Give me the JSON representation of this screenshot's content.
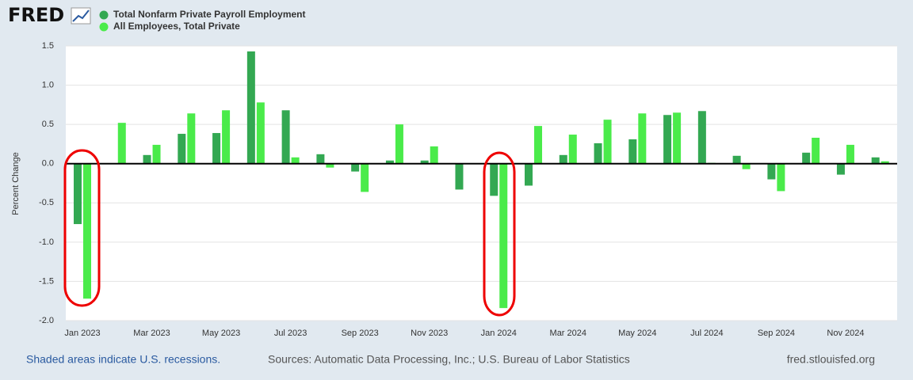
{
  "chart_data": {
    "type": "bar",
    "logo": "FRED",
    "y_label": "Percent Change",
    "note": "Shaded areas indicate U.S. recessions.",
    "sources": "Sources: Automatic Data Processing, Inc.; U.S. Bureau of Labor Statistics",
    "site": "fred.stlouisfed.org",
    "categories": [
      "Jan 2023",
      null,
      "Mar 2023",
      null,
      "May 2023",
      null,
      "Jul 2023",
      null,
      "Sep 2023",
      null,
      "Nov 2023",
      null,
      "Jan 2024",
      null,
      "Mar 2024",
      null,
      "May 2024",
      null,
      "Jul 2024",
      null,
      "Sep 2024",
      null,
      "Nov 2024",
      null
    ],
    "series": [
      {
        "name": "Total Nonfarm Private Payroll Employment",
        "color": "#33a852",
        "values": [
          -0.77,
          0,
          0.11,
          0.38,
          0.39,
          1.43,
          0.68,
          0.12,
          -0.1,
          0.04,
          0.04,
          -0.33,
          -0.41,
          -0.28,
          0.11,
          0.26,
          0.31,
          0.62,
          0.67,
          0.1,
          -0.2,
          0.14,
          -0.14,
          0.08
        ]
      },
      {
        "name": "All Employees, Total Private",
        "color": "#4aeb4a",
        "values": [
          -1.72,
          0.52,
          0.24,
          0.64,
          0.68,
          0.78,
          0.08,
          -0.05,
          -0.36,
          0.5,
          0.22,
          0,
          -1.84,
          0.48,
          0.37,
          0.56,
          0.64,
          0.65,
          0.01,
          -0.07,
          -0.35,
          0.33,
          0.24,
          0.03
        ]
      }
    ],
    "ylim": [
      -2.0,
      1.5
    ],
    "yticks": [
      {
        "value": -2,
        "label": "-2.0"
      },
      -1.5,
      {
        "value": -1,
        "label": "-1.0"
      },
      -0.5,
      {
        "value": 0,
        "label": "0.0"
      },
      0.5,
      {
        "value": 1,
        "label": "1.0"
      },
      1.5
    ],
    "grid": true
  }
}
